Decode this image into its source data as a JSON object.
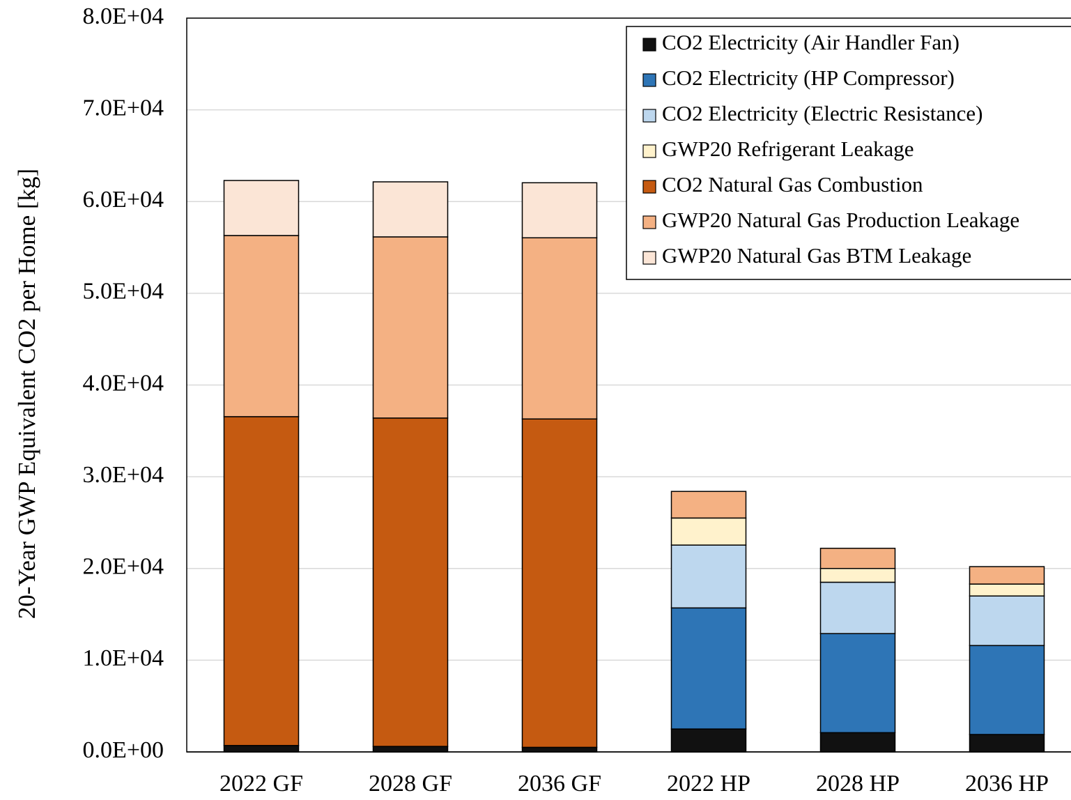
{
  "chart_data": {
    "type": "stacked_bar",
    "y_label": "20-Year GWP Equivalent CO2 per Home [kg]",
    "categories": [
      "2022 GF",
      "2028 GF",
      "2036 GF",
      "2022 HP",
      "2028 HP",
      "2036 HP"
    ],
    "series": [
      {
        "name": "CO2 Electricity (Air Handler Fan)",
        "color": "#111111",
        "values": [
          700,
          600,
          500,
          2500,
          2100,
          1900
        ]
      },
      {
        "name": "CO2 Electricity (HP Compressor)",
        "color": "#2e75b6",
        "values": [
          0,
          0,
          0,
          13200,
          10800,
          9700
        ]
      },
      {
        "name": "CO2 Electricity (Electric Resistance)",
        "color": "#bdd7ee",
        "values": [
          0,
          0,
          0,
          6850,
          5600,
          5400
        ]
      },
      {
        "name": "GWP20 Refrigerant Leakage",
        "color": "#fff2cc",
        "values": [
          0,
          0,
          0,
          2950,
          1500,
          1300
        ]
      },
      {
        "name": "CO2 Natural Gas Combustion",
        "color": "#c55a11",
        "values": [
          35850,
          35800,
          35800,
          0,
          0,
          0
        ]
      },
      {
        "name": "GWP20 Natural Gas Production Leakage",
        "color": "#f4b183",
        "values": [
          19750,
          19750,
          19750,
          2900,
          2200,
          1900
        ]
      },
      {
        "name": "GWP20 Natural Gas BTM Leakage",
        "color": "#fbe5d6",
        "values": [
          6000,
          6000,
          6000,
          0,
          0,
          0
        ]
      }
    ],
    "ylim": [
      0,
      80000
    ],
    "yticks": [
      {
        "value": 0,
        "label": "0.0E+00"
      },
      {
        "value": 10000,
        "label": "1.0E+04"
      },
      {
        "value": 20000,
        "label": "2.0E+04"
      },
      {
        "value": 30000,
        "label": "3.0E+04"
      },
      {
        "value": 40000,
        "label": "4.0E+04"
      },
      {
        "value": 50000,
        "label": "5.0E+04"
      },
      {
        "value": 60000,
        "label": "6.0E+04"
      },
      {
        "value": 70000,
        "label": "7.0E+04"
      },
      {
        "value": 80000,
        "label": "8.0E+04"
      }
    ],
    "grid": true,
    "legend": "upper right"
  }
}
